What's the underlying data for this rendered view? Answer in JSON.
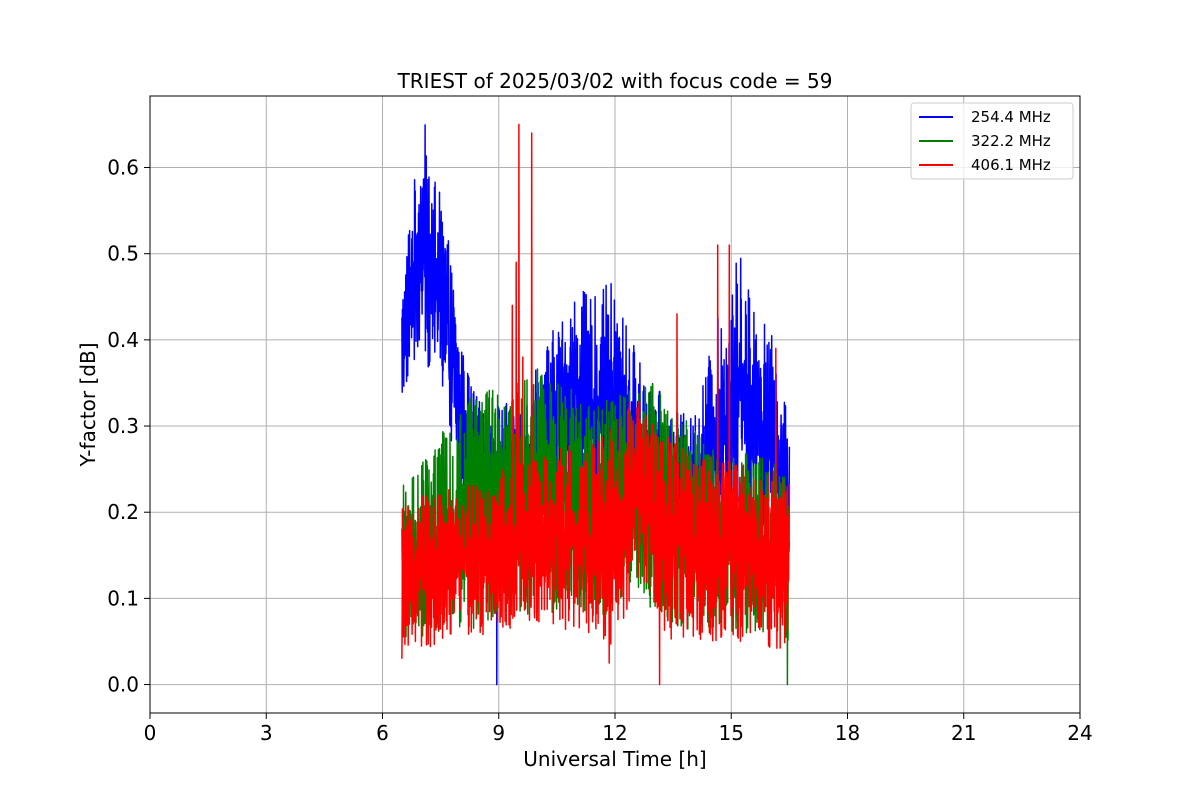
{
  "chart_data": {
    "type": "line",
    "title": "TRIEST of 2025/03/02 with focus code = 59",
    "xlabel": "Universal Time [h]",
    "ylabel": "Y-factor [dB]",
    "xlim": [
      0,
      24
    ],
    "ylim": [
      -0.033,
      0.683
    ],
    "xticks": [
      0,
      3,
      6,
      9,
      12,
      15,
      18,
      21,
      24
    ],
    "yticks": [
      0.0,
      0.1,
      0.2,
      0.3,
      0.4,
      0.5,
      0.6
    ],
    "ytick_labels": [
      "0.0",
      "0.1",
      "0.2",
      "0.3",
      "0.4",
      "0.5",
      "0.6"
    ],
    "grid": true,
    "legend_position": "top-right",
    "data_time_range_h": [
      6.5,
      16.5
    ],
    "series": [
      {
        "name": "254.4 MHz",
        "color": "#0000ff",
        "lower_envelope": [
          [
            6.5,
            0.32
          ],
          [
            6.7,
            0.36
          ],
          [
            7.0,
            0.38
          ],
          [
            7.3,
            0.36
          ],
          [
            7.5,
            0.34
          ],
          [
            7.8,
            0.27
          ],
          [
            8.0,
            0.22
          ],
          [
            8.3,
            0.2
          ],
          [
            8.6,
            0.18
          ],
          [
            9.0,
            0.17
          ],
          [
            9.5,
            0.16
          ],
          [
            10.0,
            0.17
          ],
          [
            10.5,
            0.19
          ],
          [
            11.0,
            0.2
          ],
          [
            11.5,
            0.19
          ],
          [
            12.0,
            0.18
          ],
          [
            12.5,
            0.17
          ],
          [
            13.0,
            0.16
          ],
          [
            13.5,
            0.15
          ],
          [
            14.0,
            0.15
          ],
          [
            14.5,
            0.16
          ],
          [
            15.0,
            0.18
          ],
          [
            15.5,
            0.19
          ],
          [
            16.0,
            0.17
          ],
          [
            16.3,
            0.16
          ],
          [
            16.5,
            0.15
          ]
        ],
        "upper_envelope": [
          [
            6.5,
            0.45
          ],
          [
            6.7,
            0.55
          ],
          [
            6.9,
            0.61
          ],
          [
            7.1,
            0.65
          ],
          [
            7.3,
            0.6
          ],
          [
            7.6,
            0.55
          ],
          [
            7.8,
            0.48
          ],
          [
            8.0,
            0.4
          ],
          [
            8.3,
            0.35
          ],
          [
            8.6,
            0.32
          ],
          [
            9.0,
            0.33
          ],
          [
            9.3,
            0.33
          ],
          [
            9.7,
            0.34
          ],
          [
            10.0,
            0.38
          ],
          [
            10.5,
            0.42
          ],
          [
            11.0,
            0.46
          ],
          [
            11.5,
            0.45
          ],
          [
            11.9,
            0.47
          ],
          [
            12.3,
            0.42
          ],
          [
            12.7,
            0.37
          ],
          [
            13.0,
            0.35
          ],
          [
            13.5,
            0.32
          ],
          [
            14.0,
            0.31
          ],
          [
            14.3,
            0.36
          ],
          [
            14.6,
            0.42
          ],
          [
            15.0,
            0.46
          ],
          [
            15.2,
            0.51
          ],
          [
            15.5,
            0.46
          ],
          [
            15.8,
            0.43
          ],
          [
            16.1,
            0.4
          ],
          [
            16.3,
            0.35
          ],
          [
            16.5,
            0.3
          ]
        ],
        "outliers": [
          [
            8.95,
            0.0
          ]
        ]
      },
      {
        "name": "322.2 MHz",
        "color": "#008000",
        "lower_envelope": [
          [
            6.5,
            0.05
          ],
          [
            7.0,
            0.05
          ],
          [
            8.0,
            0.06
          ],
          [
            9.0,
            0.07
          ],
          [
            10.0,
            0.08
          ],
          [
            11.0,
            0.08
          ],
          [
            12.0,
            0.08
          ],
          [
            12.5,
            0.12
          ],
          [
            13.0,
            0.08
          ],
          [
            14.0,
            0.06
          ],
          [
            15.0,
            0.06
          ],
          [
            16.0,
            0.06
          ],
          [
            16.5,
            0.05
          ]
        ],
        "upper_envelope": [
          [
            6.5,
            0.23
          ],
          [
            6.8,
            0.26
          ],
          [
            7.2,
            0.27
          ],
          [
            7.5,
            0.29
          ],
          [
            7.8,
            0.31
          ],
          [
            8.0,
            0.33
          ],
          [
            8.5,
            0.34
          ],
          [
            9.0,
            0.35
          ],
          [
            9.5,
            0.36
          ],
          [
            10.0,
            0.37
          ],
          [
            10.5,
            0.35
          ],
          [
            11.0,
            0.34
          ],
          [
            11.5,
            0.33
          ],
          [
            12.0,
            0.33
          ],
          [
            12.5,
            0.36
          ],
          [
            13.0,
            0.35
          ],
          [
            13.5,
            0.32
          ],
          [
            14.0,
            0.3
          ],
          [
            14.5,
            0.28
          ],
          [
            15.0,
            0.27
          ],
          [
            15.5,
            0.27
          ],
          [
            16.0,
            0.26
          ],
          [
            16.5,
            0.25
          ]
        ],
        "outliers": [
          [
            16.45,
            0.0
          ]
        ]
      },
      {
        "name": "406.1 MHz",
        "color": "#ff0000",
        "lower_envelope": [
          [
            6.5,
            0.04
          ],
          [
            7.0,
            0.04
          ],
          [
            8.0,
            0.05
          ],
          [
            9.0,
            0.06
          ],
          [
            10.0,
            0.07
          ],
          [
            11.0,
            0.06
          ],
          [
            11.8,
            0.04
          ],
          [
            12.2,
            0.07
          ],
          [
            12.6,
            0.12
          ],
          [
            13.0,
            0.07
          ],
          [
            13.5,
            0.05
          ],
          [
            14.0,
            0.05
          ],
          [
            15.0,
            0.05
          ],
          [
            16.0,
            0.04
          ],
          [
            16.5,
            0.04
          ]
        ],
        "upper_envelope": [
          [
            6.5,
            0.21
          ],
          [
            7.0,
            0.22
          ],
          [
            8.0,
            0.23
          ],
          [
            9.0,
            0.25
          ],
          [
            10.0,
            0.27
          ],
          [
            11.0,
            0.28
          ],
          [
            12.0,
            0.3
          ],
          [
            12.5,
            0.34
          ],
          [
            13.0,
            0.3
          ],
          [
            14.0,
            0.27
          ],
          [
            15.0,
            0.26
          ],
          [
            16.0,
            0.25
          ],
          [
            16.5,
            0.24
          ]
        ],
        "spikes": [
          [
            9.35,
            0.44
          ],
          [
            9.45,
            0.49
          ],
          [
            9.52,
            0.65
          ],
          [
            9.62,
            0.38
          ],
          [
            9.85,
            0.64
          ],
          [
            13.6,
            0.43
          ],
          [
            14.65,
            0.51
          ],
          [
            14.95,
            0.51
          ],
          [
            16.15,
            0.39
          ]
        ],
        "outliers": [
          [
            6.5,
            0.03
          ],
          [
            11.85,
            0.025
          ],
          [
            13.15,
            0.0
          ]
        ]
      }
    ]
  }
}
